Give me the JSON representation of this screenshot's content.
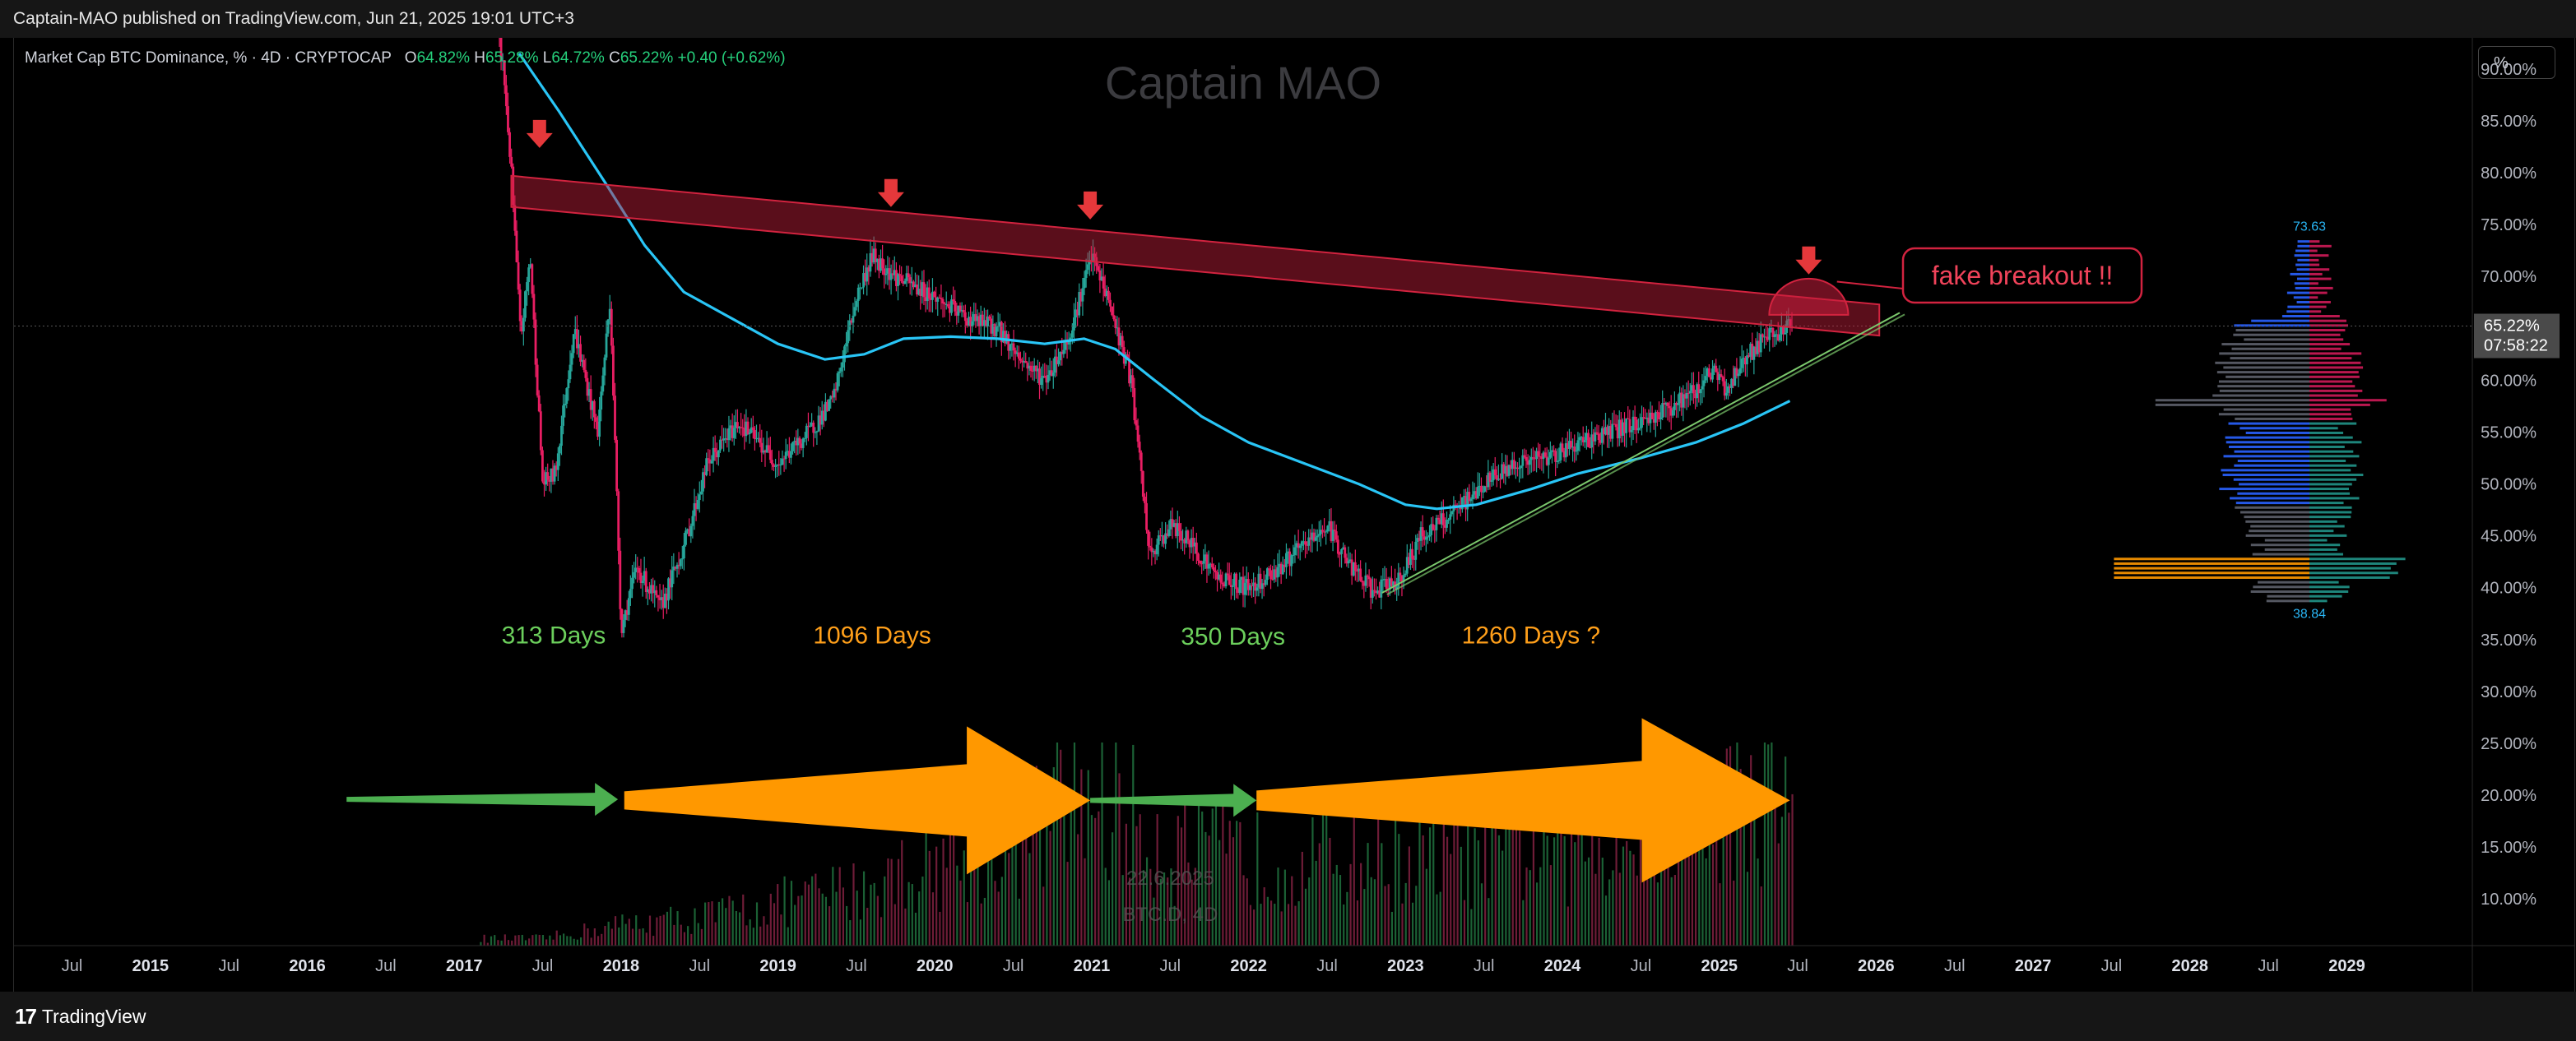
{
  "header": {
    "published": "Captain-MAO published on TradingView.com, Jun 21, 2025 19:01 UTC+3"
  },
  "legend": {
    "symbol": "Market Cap BTC Dominance, % · 4D · CRYPTOCAP",
    "o_label": "O",
    "o_value": "64.82%",
    "h_label": "H",
    "h_value": "65.28%",
    "l_label": "L",
    "l_value": "64.72%",
    "c_label": "C",
    "c_value": "65.22%",
    "change": "+0.40 (+0.62%)"
  },
  "watermark": "Captain MAO",
  "scale_button": "%",
  "footer": {
    "logo": "17",
    "brand": "TradingView"
  },
  "colors": {
    "up": "#26a69a",
    "down": "#ef5350",
    "ma": "#29c5f6",
    "resistance": "#d2233f",
    "support": "#7bc86c",
    "cycle_green": "#4caf50",
    "cycle_orange": "#ff9800",
    "last_price_bg": "#4a4a4a"
  },
  "chart_data": {
    "type": "candlestick",
    "title": "Market Cap BTC Dominance, % · 4D · CRYPTOCAP",
    "ylabel": "%",
    "y_axis": {
      "ticks": [
        "90.00%",
        "85.00%",
        "80.00%",
        "75.00%",
        "70.00%",
        "65.00%",
        "60.00%",
        "55.00%",
        "50.00%",
        "45.00%",
        "40.00%",
        "35.00%",
        "30.00%",
        "25.00%",
        "20.00%",
        "15.00%",
        "10.00%"
      ],
      "ylim": [
        5.5,
        93
      ]
    },
    "x_axis": {
      "ticks": [
        "Jul",
        "2015",
        "Jul",
        "2016",
        "Jul",
        "2017",
        "Jul",
        "2018",
        "Jul",
        "2019",
        "Jul",
        "2020",
        "Jul",
        "2021",
        "Jul",
        "2022",
        "Jul",
        "2023",
        "Jul",
        "2024",
        "Jul",
        "2025",
        "Jul",
        "2026",
        "Jul",
        "2027",
        "Jul",
        "2028",
        "Jul",
        "2029"
      ],
      "xlim": [
        2014.13,
        2029.8
      ]
    },
    "last_price": {
      "value": "65.22%",
      "countdown": "07:58:22"
    },
    "price_path": [
      [
        2017.18,
        96.0
      ],
      [
        2017.25,
        90.0
      ],
      [
        2017.3,
        80.0
      ],
      [
        2017.36,
        64.0
      ],
      [
        2017.42,
        72.0
      ],
      [
        2017.5,
        50.0
      ],
      [
        2017.58,
        51.0
      ],
      [
        2017.7,
        65.0
      ],
      [
        2017.85,
        55.0
      ],
      [
        2017.93,
        68.0
      ],
      [
        2018.0,
        36.0
      ],
      [
        2018.1,
        42.0
      ],
      [
        2018.25,
        38.0
      ],
      [
        2018.4,
        44.0
      ],
      [
        2018.55,
        52.0
      ],
      [
        2018.75,
        56.0
      ],
      [
        2019.0,
        52.0
      ],
      [
        2019.2,
        55.0
      ],
      [
        2019.35,
        58.0
      ],
      [
        2019.5,
        68.0
      ],
      [
        2019.6,
        72.0
      ],
      [
        2019.75,
        70.0
      ],
      [
        2020.0,
        68.0
      ],
      [
        2020.2,
        66.0
      ],
      [
        2020.4,
        65.0
      ],
      [
        2020.55,
        62.0
      ],
      [
        2020.7,
        60.0
      ],
      [
        2020.85,
        64.0
      ],
      [
        2021.0,
        72.0
      ],
      [
        2021.1,
        68.0
      ],
      [
        2021.25,
        60.0
      ],
      [
        2021.37,
        43.0
      ],
      [
        2021.5,
        46.0
      ],
      [
        2021.65,
        44.0
      ],
      [
        2021.8,
        41.0
      ],
      [
        2022.0,
        40.0
      ],
      [
        2022.2,
        42.0
      ],
      [
        2022.35,
        44.0
      ],
      [
        2022.5,
        46.0
      ],
      [
        2022.65,
        42.0
      ],
      [
        2022.8,
        39.5
      ],
      [
        2022.97,
        41.0
      ],
      [
        2023.1,
        45.0
      ],
      [
        2023.3,
        47.0
      ],
      [
        2023.5,
        50.0
      ],
      [
        2023.7,
        52.0
      ],
      [
        2023.9,
        52.5
      ],
      [
        2024.1,
        54.0
      ],
      [
        2024.3,
        55.0
      ],
      [
        2024.5,
        56.0
      ],
      [
        2024.7,
        57.5
      ],
      [
        2024.85,
        59.0
      ],
      [
        2024.95,
        61.0
      ],
      [
        2025.05,
        59.0
      ],
      [
        2025.15,
        62.0
      ],
      [
        2025.3,
        64.0
      ],
      [
        2025.47,
        65.22
      ]
    ],
    "moving_average": [
      [
        2017.35,
        91.5
      ],
      [
        2017.6,
        86.0
      ],
      [
        2017.9,
        79.0
      ],
      [
        2018.15,
        73.0
      ],
      [
        2018.4,
        68.5
      ],
      [
        2018.7,
        66.0
      ],
      [
        2019.0,
        63.5
      ],
      [
        2019.3,
        62.0
      ],
      [
        2019.55,
        62.5
      ],
      [
        2019.8,
        64.0
      ],
      [
        2020.1,
        64.2
      ],
      [
        2020.4,
        64.0
      ],
      [
        2020.7,
        63.5
      ],
      [
        2020.95,
        64.0
      ],
      [
        2021.15,
        63.0
      ],
      [
        2021.4,
        60.0
      ],
      [
        2021.7,
        56.5
      ],
      [
        2022.0,
        54.0
      ],
      [
        2022.35,
        52.0
      ],
      [
        2022.7,
        50.0
      ],
      [
        2023.0,
        48.0
      ],
      [
        2023.2,
        47.6
      ],
      [
        2023.45,
        48.0
      ],
      [
        2023.8,
        49.5
      ],
      [
        2024.1,
        51.0
      ],
      [
        2024.5,
        52.5
      ],
      [
        2024.85,
        54.0
      ],
      [
        2025.15,
        55.8
      ],
      [
        2025.45,
        58.0
      ]
    ],
    "volume_bars_by_year": [
      [
        2017.5,
        0.01
      ],
      [
        2018.0,
        0.03
      ],
      [
        2018.5,
        0.04
      ],
      [
        2019.0,
        0.06
      ],
      [
        2019.5,
        0.08
      ],
      [
        2020.0,
        0.12
      ],
      [
        2020.5,
        0.15
      ],
      [
        2021.0,
        0.22
      ],
      [
        2021.5,
        0.14
      ],
      [
        2022.0,
        0.12
      ],
      [
        2022.5,
        0.13
      ],
      [
        2023.0,
        0.12
      ],
      [
        2023.5,
        0.13
      ],
      [
        2024.0,
        0.14
      ],
      [
        2024.5,
        0.16
      ],
      [
        2025.0,
        0.2
      ],
      [
        2025.47,
        0.22
      ]
    ],
    "volume_profile": {
      "high_label": "73.63",
      "low_label": "38.84",
      "poc": 42.0
    },
    "annotations": {
      "callout": "fake breakout !!",
      "cycles": [
        {
          "text": "313 Days",
          "color": "green"
        },
        {
          "text": "1096 Days",
          "color": "orange"
        },
        {
          "text": "350 Days",
          "color": "green"
        },
        {
          "text": "1260 Days ?",
          "color": "orange"
        }
      ]
    },
    "volume_watermark": {
      "date": "22.6.2025",
      "symbol": "BTC.D, 4D"
    }
  }
}
